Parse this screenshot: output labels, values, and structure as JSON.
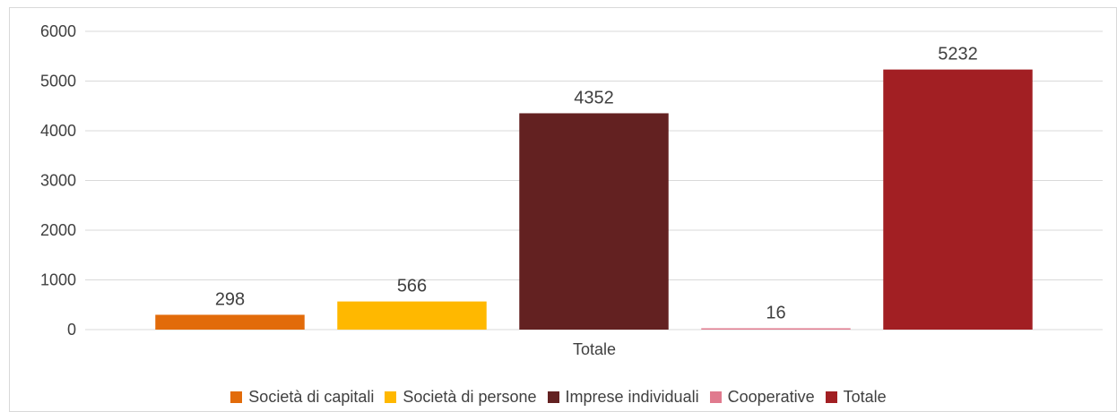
{
  "chart_data": {
    "type": "bar",
    "title": "",
    "xlabel": "",
    "ylabel": "",
    "categories": [
      "Totale"
    ],
    "ylim": [
      0,
      6000
    ],
    "yticks": [
      0,
      1000,
      2000,
      3000,
      4000,
      5000,
      6000
    ],
    "grid": true,
    "legend_position": "bottom",
    "series": [
      {
        "name": "Società di capitali",
        "values": [
          298
        ],
        "color": "#E26B0A"
      },
      {
        "name": "Società di persone",
        "values": [
          566
        ],
        "color": "#FFB800"
      },
      {
        "name": "Imprese individuali",
        "values": [
          4352
        ],
        "color": "#632121"
      },
      {
        "name": "Cooperative",
        "values": [
          16
        ],
        "color": "#E07A8E"
      },
      {
        "name": "Totale",
        "values": [
          5232
        ],
        "color": "#A21F23"
      }
    ]
  }
}
